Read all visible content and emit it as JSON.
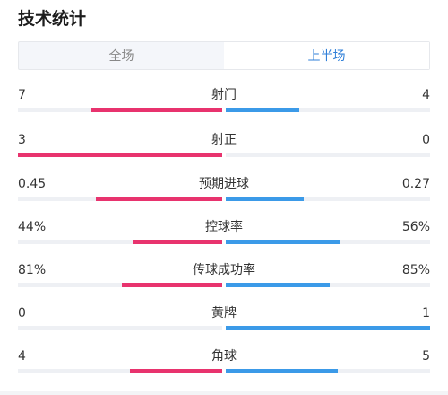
{
  "header": {
    "title": "技术统计"
  },
  "tabs": [
    {
      "label": "全场",
      "active": false
    },
    {
      "label": "上半场",
      "active": true
    }
  ],
  "colors": {
    "home": "#e8336e",
    "away": "#3b9ae8",
    "active_tab": "#2f7fd8"
  },
  "stats": [
    {
      "label": "射门",
      "left": "7",
      "right": "4",
      "left_share": 0.64,
      "right_share": 0.36
    },
    {
      "label": "射正",
      "left": "3",
      "right": "0",
      "left_share": 1.0,
      "right_share": 0.0
    },
    {
      "label": "预期进球",
      "left": "0.45",
      "right": "0.27",
      "left_share": 0.62,
      "right_share": 0.38
    },
    {
      "label": "控球率",
      "left": "44%",
      "right": "56%",
      "left_share": 0.44,
      "right_share": 0.56
    },
    {
      "label": "传球成功率",
      "left": "81%",
      "right": "85%",
      "left_share": 0.49,
      "right_share": 0.51
    },
    {
      "label": "黄牌",
      "left": "0",
      "right": "1",
      "left_share": 0.0,
      "right_share": 1.0
    },
    {
      "label": "角球",
      "left": "4",
      "right": "5",
      "left_share": 0.45,
      "right_share": 0.55
    }
  ]
}
